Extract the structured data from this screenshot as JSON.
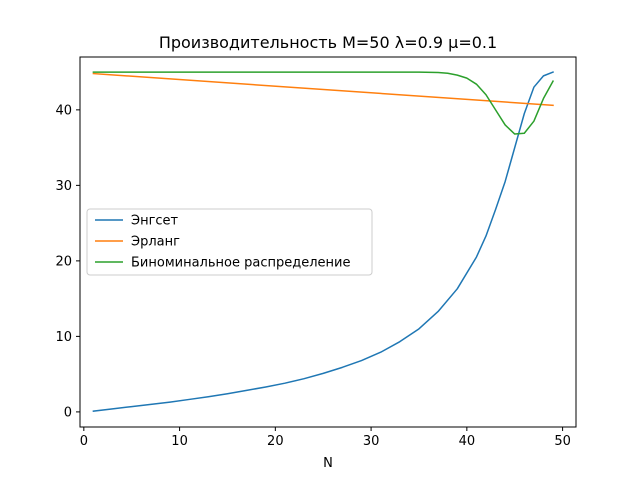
{
  "chart_data": {
    "type": "line",
    "title": "Производительность M=50 λ=0.9 μ=0.1",
    "xlabel": "N",
    "ylabel": "",
    "xlim": [
      -0.4,
      51.4
    ],
    "ylim": [
      -2.0,
      47.0
    ],
    "xticks": [
      0,
      10,
      20,
      30,
      40,
      50
    ],
    "yticks": [
      0,
      10,
      20,
      30,
      40
    ],
    "grid": false,
    "legend_position": "center-left",
    "series": [
      {
        "name": "Энгсет",
        "color": "#1f77b4",
        "x": [
          1,
          3,
          5,
          7,
          9,
          11,
          13,
          15,
          17,
          19,
          21,
          23,
          25,
          27,
          29,
          31,
          33,
          35,
          37,
          39,
          41,
          42,
          43,
          44,
          45,
          46,
          47,
          48,
          49
        ],
        "y": [
          0.1,
          0.4,
          0.7,
          1.0,
          1.3,
          1.65,
          2.0,
          2.4,
          2.85,
          3.3,
          3.8,
          4.4,
          5.1,
          5.9,
          6.8,
          7.9,
          9.3,
          11.0,
          13.3,
          16.3,
          20.5,
          23.3,
          26.8,
          30.5,
          35.0,
          39.5,
          43.0,
          44.5,
          45.0
        ]
      },
      {
        "name": "Эрланг",
        "color": "#ff7f0e",
        "x": [
          1,
          49
        ],
        "y": [
          44.8,
          40.6
        ]
      },
      {
        "name": "Биноминальное распределение",
        "color": "#2ca02c",
        "x": [
          1,
          5,
          10,
          15,
          20,
          25,
          30,
          35,
          37,
          38,
          39,
          40,
          41,
          42,
          43,
          44,
          45,
          46,
          47,
          48,
          49
        ],
        "y": [
          45.0,
          45.0,
          45.0,
          45.0,
          45.0,
          45.0,
          45.0,
          45.0,
          44.95,
          44.85,
          44.6,
          44.2,
          43.4,
          42.0,
          40.0,
          38.0,
          36.8,
          36.9,
          38.5,
          41.5,
          43.8
        ]
      }
    ]
  }
}
